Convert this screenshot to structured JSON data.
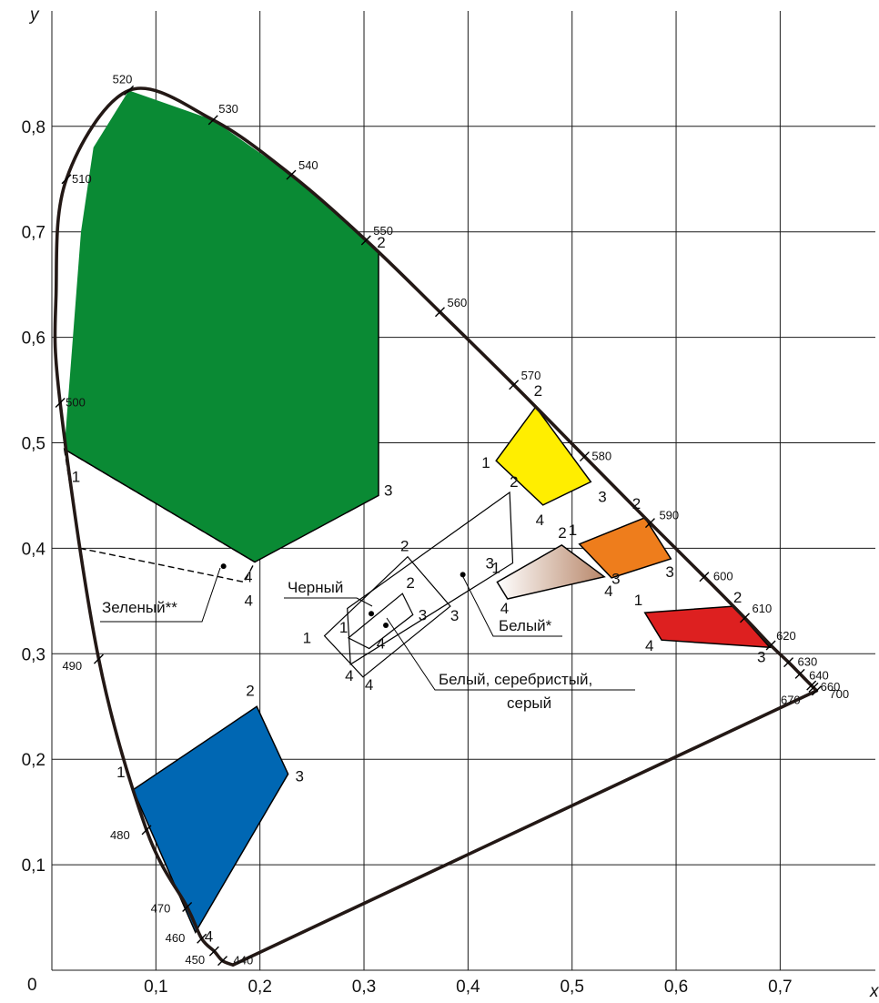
{
  "chart_data": {
    "type": "scatter",
    "title": "",
    "xlabel": "x",
    "ylabel": "y",
    "origin_label": "0",
    "xlim": [
      0,
      0.76
    ],
    "ylim": [
      0,
      0.85
    ],
    "grid": true,
    "x_ticks": [
      0.1,
      0.2,
      0.3,
      0.4,
      0.5,
      0.6,
      0.7
    ],
    "x_tick_labels": [
      "0,1",
      "0,2",
      "0,3",
      "0,4",
      "0,5",
      "0,6",
      "0,7"
    ],
    "y_ticks": [
      0.1,
      0.2,
      0.3,
      0.4,
      0.5,
      0.6,
      0.7,
      0.8
    ],
    "y_tick_labels": [
      "0,1",
      "0,2",
      "0,3",
      "0,4",
      "0,5",
      "0,6",
      "0,7",
      "0,8"
    ],
    "locus": {
      "line_of_purples": [
        [
          0.735,
          0.265
        ],
        [
          0.174,
          0.005
        ]
      ],
      "wavelength_marks": [
        {
          "nm": "440",
          "x": 0.164,
          "y": 0.009
        },
        {
          "nm": "450",
          "x": 0.156,
          "y": 0.018
        },
        {
          "nm": "460",
          "x": 0.144,
          "y": 0.03
        },
        {
          "nm": "470",
          "x": 0.13,
          "y": 0.06
        },
        {
          "nm": "480",
          "x": 0.091,
          "y": 0.133
        },
        {
          "nm": "490",
          "x": 0.045,
          "y": 0.295
        },
        {
          "nm": "500",
          "x": 0.008,
          "y": 0.538
        },
        {
          "nm": "510",
          "x": 0.014,
          "y": 0.75
        },
        {
          "nm": "520",
          "x": 0.074,
          "y": 0.834
        },
        {
          "nm": "530",
          "x": 0.155,
          "y": 0.806
        },
        {
          "nm": "540",
          "x": 0.23,
          "y": 0.754
        },
        {
          "nm": "550",
          "x": 0.302,
          "y": 0.692
        },
        {
          "nm": "560",
          "x": 0.373,
          "y": 0.624
        },
        {
          "nm": "570",
          "x": 0.444,
          "y": 0.555
        },
        {
          "nm": "580",
          "x": 0.512,
          "y": 0.487
        },
        {
          "nm": "590",
          "x": 0.575,
          "y": 0.424
        },
        {
          "nm": "600",
          "x": 0.627,
          "y": 0.373
        },
        {
          "nm": "610",
          "x": 0.666,
          "y": 0.334
        },
        {
          "nm": "620",
          "x": 0.691,
          "y": 0.308
        },
        {
          "nm": "630",
          "x": 0.708,
          "y": 0.292
        },
        {
          "nm": "640",
          "x": 0.719,
          "y": 0.281
        },
        {
          "nm": "660",
          "x": 0.73,
          "y": 0.27
        },
        {
          "nm": "670",
          "x": 0.732,
          "y": 0.268
        },
        {
          "nm": "700",
          "x": 0.735,
          "y": 0.265
        }
      ]
    },
    "regions": [
      {
        "id": "green",
        "color": "#0a8a34",
        "filled": true,
        "points": [
          [
            0.012,
            0.494
          ],
          [
            0.028,
            0.7
          ],
          [
            0.04,
            0.78
          ],
          [
            0.074,
            0.834
          ],
          [
            0.155,
            0.806
          ],
          [
            0.23,
            0.754
          ],
          [
            0.302,
            0.692
          ],
          [
            0.314,
            0.68
          ],
          [
            0.314,
            0.45
          ],
          [
            0.195,
            0.387
          ]
        ],
        "corner_labels": [
          "1",
          "2",
          "3",
          "4"
        ]
      },
      {
        "id": "blue",
        "color": "#0067b3",
        "filled": true,
        "points": [
          [
            0.078,
            0.171
          ],
          [
            0.197,
            0.25
          ],
          [
            0.227,
            0.186
          ],
          [
            0.138,
            0.036
          ]
        ],
        "corner_labels": [
          "1",
          "2",
          "3",
          "4"
        ]
      },
      {
        "id": "yellow",
        "color": "#ffee00",
        "filled": true,
        "points": [
          [
            0.427,
            0.483
          ],
          [
            0.465,
            0.534
          ],
          [
            0.518,
            0.463
          ],
          [
            0.472,
            0.441
          ]
        ],
        "corner_labels": [
          "1",
          "2",
          "3",
          "4"
        ]
      },
      {
        "id": "orange",
        "color": "#ee7d1c",
        "filled": true,
        "points": [
          [
            0.507,
            0.404
          ],
          [
            0.57,
            0.429
          ],
          [
            0.595,
            0.39
          ],
          [
            0.538,
            0.372
          ]
        ],
        "corner_labels": [
          "1",
          "2",
          "3",
          "4"
        ]
      },
      {
        "id": "red",
        "color": "#dd2020",
        "filled": true,
        "points": [
          [
            0.57,
            0.339
          ],
          [
            0.655,
            0.345
          ],
          [
            0.69,
            0.306
          ],
          [
            0.586,
            0.313
          ]
        ],
        "corner_labels": [
          "1",
          "2",
          "3",
          "4"
        ]
      },
      {
        "id": "white-star",
        "color": "#b8876a",
        "filled": true,
        "points": [
          [
            0.428,
            0.368
          ],
          [
            0.49,
            0.403
          ],
          [
            0.531,
            0.373
          ],
          [
            0.438,
            0.352
          ]
        ],
        "corner_labels": [
          "1",
          "2",
          "3",
          "4"
        ]
      },
      {
        "id": "green-double-star",
        "color": "#000000",
        "filled": false,
        "dashed": true,
        "points": [
          [
            0.012,
            0.494
          ],
          [
            0.027,
            0.4
          ],
          [
            0.185,
            0.368
          ],
          [
            0.195,
            0.387
          ]
        ],
        "corner_labels": [
          "4"
        ]
      },
      {
        "id": "black",
        "color": "#000000",
        "filled": false,
        "points": [
          [
            0.285,
            0.315
          ],
          [
            0.337,
            0.357
          ],
          [
            0.347,
            0.337
          ],
          [
            0.305,
            0.305
          ]
        ],
        "corner_labels": [
          "1",
          "2",
          "3",
          "4"
        ]
      },
      {
        "id": "white-silver-gray",
        "color": "#000000",
        "filled": false,
        "points": [
          [
            0.262,
            0.317
          ],
          [
            0.342,
            0.392
          ],
          [
            0.383,
            0.345
          ],
          [
            0.299,
            0.278
          ]
        ],
        "corner_labels": [
          "1",
          "2",
          "3",
          "4"
        ]
      },
      {
        "id": "outer-white",
        "color": "#000000",
        "filled": false,
        "points": [
          [
            0.284,
            0.343
          ],
          [
            0.44,
            0.453
          ],
          [
            0.443,
            0.386
          ],
          [
            0.287,
            0.29
          ]
        ],
        "corner_labels": [
          "2",
          "3",
          "4"
        ]
      }
    ],
    "annotations": [
      {
        "text": "Зеленый**",
        "marker": [
          0.165,
          0.383
        ]
      },
      {
        "text": "Черный",
        "marker": [
          0.307,
          0.338
        ]
      },
      {
        "text": "Белый, серебристый,",
        "marker": [
          0.321,
          0.327
        ]
      },
      {
        "text": "серый",
        "marker": null
      },
      {
        "text": "Белый*",
        "marker": [
          0.395,
          0.375
        ]
      }
    ]
  }
}
